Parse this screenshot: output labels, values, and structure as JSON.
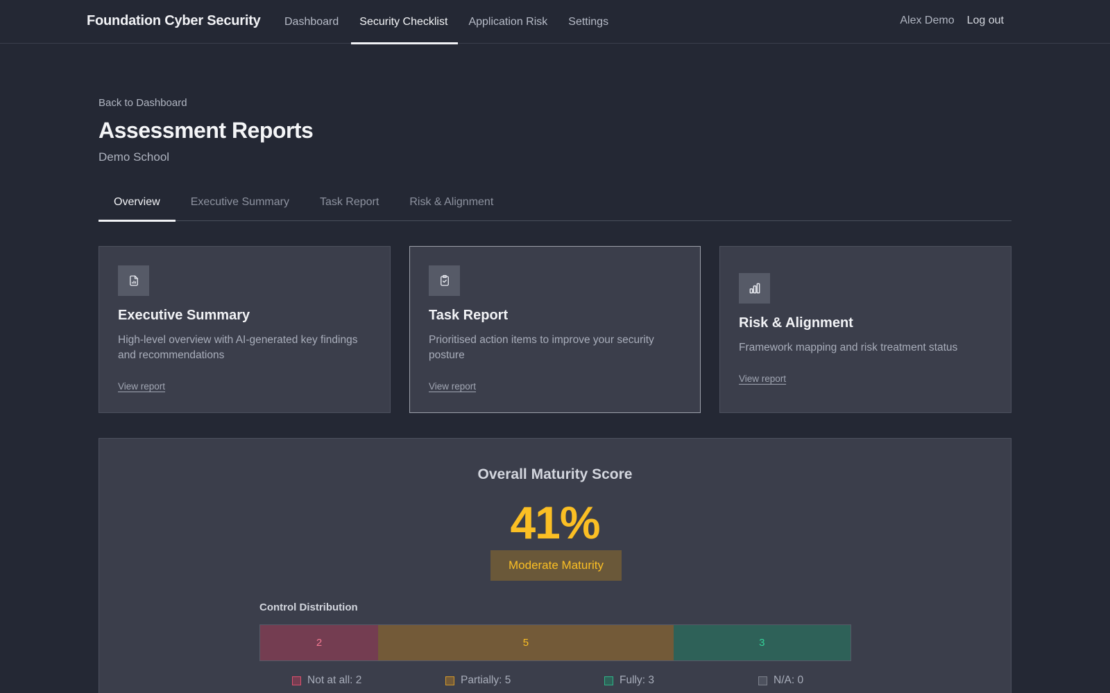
{
  "nav": {
    "brand": "Foundation Cyber Security",
    "links": [
      {
        "label": "Dashboard",
        "active": false
      },
      {
        "label": "Security Checklist",
        "active": true
      },
      {
        "label": "Application Risk",
        "active": false
      },
      {
        "label": "Settings",
        "active": false
      }
    ],
    "user_name": "Alex Demo",
    "logout_label": "Log out"
  },
  "header": {
    "back_label": "Back to Dashboard",
    "title": "Assessment Reports",
    "subtitle": "Demo School"
  },
  "tabs": [
    {
      "label": "Overview",
      "active": true
    },
    {
      "label": "Executive Summary",
      "active": false
    },
    {
      "label": "Task Report",
      "active": false
    },
    {
      "label": "Risk & Alignment",
      "active": false
    }
  ],
  "cards": [
    {
      "icon": "document-chart-icon",
      "title": "Executive Summary",
      "description": "High-level overview with AI-generated key findings and recommendations",
      "link_label": "View report"
    },
    {
      "icon": "clipboard-check-icon",
      "title": "Task Report",
      "description": "Prioritised action items to improve your security posture",
      "link_label": "View report"
    },
    {
      "icon": "bar-chart-icon",
      "title": "Risk & Alignment",
      "description": "Framework mapping and risk treatment status",
      "link_label": "View report"
    }
  ],
  "maturity": {
    "title": "Overall Maturity Score",
    "score": "41%",
    "level": "Moderate Maturity",
    "accent_color": "#fbbf24"
  },
  "distribution": {
    "title": "Control Distribution",
    "segments": [
      {
        "label": "Not at all",
        "count": 2,
        "display": "2",
        "legend": "Not at all: 2",
        "bg": "#743d51",
        "text_color": "#f47a92",
        "swatch_bg": "#743d51",
        "swatch_border": "#e0506e"
      },
      {
        "label": "Partially",
        "count": 5,
        "display": "5",
        "legend": "Partially: 5",
        "bg": "#735a38",
        "text_color": "#fbbf24",
        "swatch_bg": "#735a38",
        "swatch_border": "#d49a2a"
      },
      {
        "label": "Fully",
        "count": 3,
        "display": "3",
        "legend": "Fully: 3",
        "bg": "#2e6158",
        "text_color": "#34d399",
        "swatch_bg": "#2e6158",
        "swatch_border": "#2fb487"
      },
      {
        "label": "N/A",
        "count": 0,
        "display": "0",
        "legend": "N/A: 0",
        "bg": "#4d515e",
        "text_color": "#a9aebb",
        "swatch_bg": "#4d515e",
        "swatch_border": "#7d818c"
      }
    ]
  }
}
